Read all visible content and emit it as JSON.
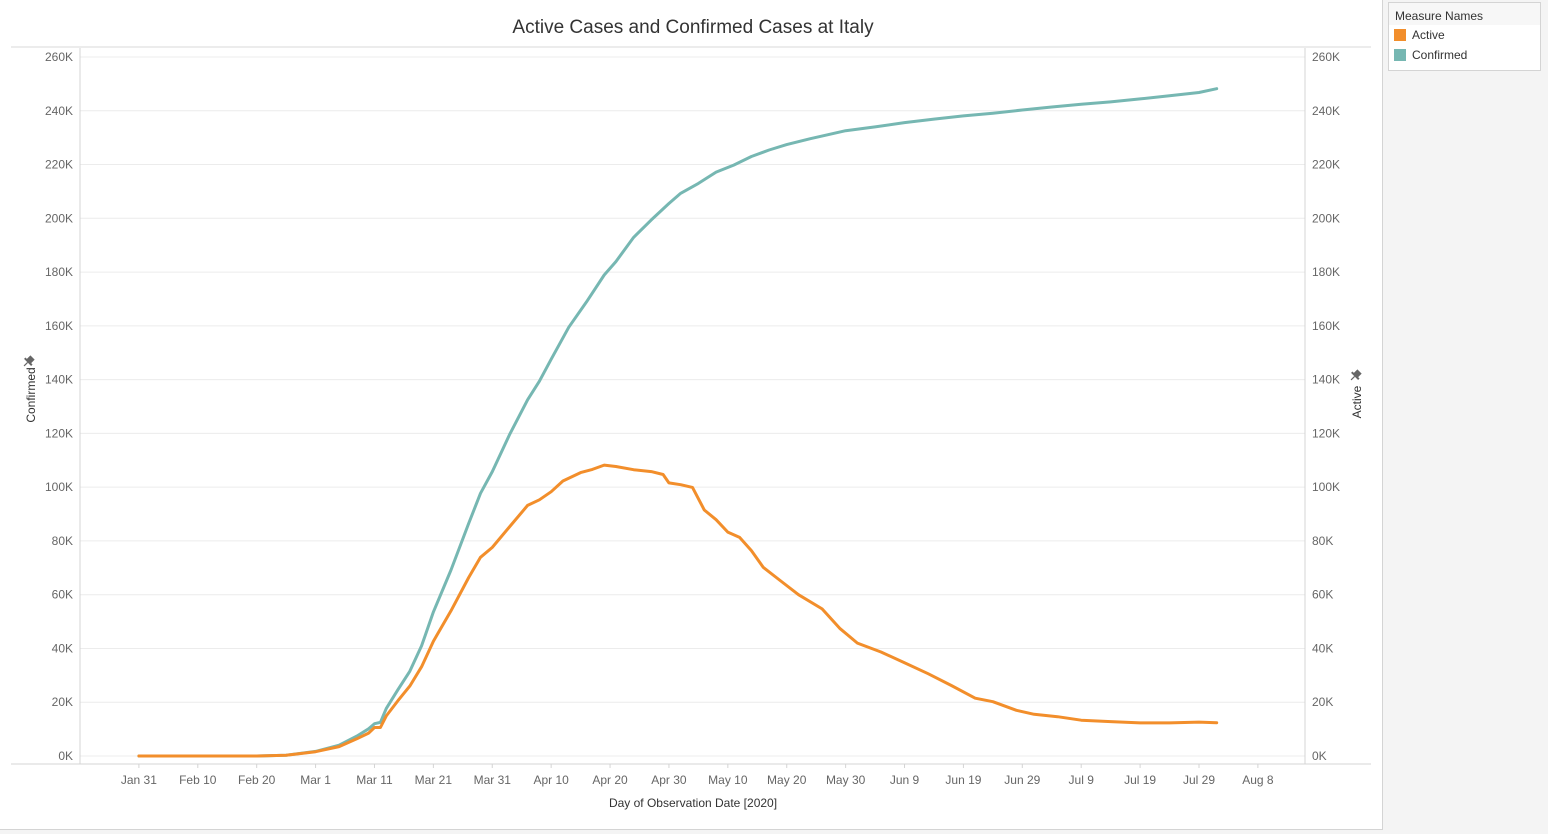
{
  "legend": {
    "title": "Measure Names",
    "items": [
      {
        "label": "Active",
        "color": "#f28e2b"
      },
      {
        "label": "Confirmed",
        "color": "#76b7b2"
      }
    ]
  },
  "chart_data": {
    "type": "line",
    "title": "Active Cases and Confirmed Cases at Italy",
    "xlabel": "Day of Observation Date [2020]",
    "ylabel_left": "Confirmed",
    "ylabel_right": "Active",
    "ylim": [
      0,
      260000
    ],
    "y_ticks": [
      0,
      20000,
      40000,
      60000,
      80000,
      100000,
      120000,
      140000,
      160000,
      180000,
      200000,
      220000,
      240000,
      260000
    ],
    "y_tick_labels": [
      "0K",
      "20K",
      "40K",
      "60K",
      "80K",
      "100K",
      "120K",
      "140K",
      "160K",
      "180K",
      "200K",
      "220K",
      "240K",
      "260K"
    ],
    "x_ticks": [
      "2020-01-31",
      "2020-02-10",
      "2020-02-20",
      "2020-03-01",
      "2020-03-11",
      "2020-03-21",
      "2020-03-31",
      "2020-04-10",
      "2020-04-20",
      "2020-04-30",
      "2020-05-10",
      "2020-05-20",
      "2020-05-30",
      "2020-06-09",
      "2020-06-19",
      "2020-06-29",
      "2020-07-09",
      "2020-07-19",
      "2020-07-29",
      "2020-08-08"
    ],
    "x_tick_labels": [
      "Jan 31",
      "Feb 10",
      "Feb 20",
      "Mar 1",
      "Mar 11",
      "Mar 21",
      "Mar 31",
      "Apr 10",
      "Apr 20",
      "Apr 30",
      "May 10",
      "May 20",
      "May 30",
      "Jun 9",
      "Jun 19",
      "Jun 29",
      "Jul 9",
      "Jul 19",
      "Jul 29",
      "Aug 8"
    ],
    "xlim": [
      "2020-01-21",
      "2020-08-16"
    ],
    "legend_position": "right",
    "grid": "horizontal",
    "series": [
      {
        "name": "Confirmed",
        "color": "#76b7b2",
        "axis": "left",
        "points": [
          [
            "2020-01-31",
            0
          ],
          [
            "2020-02-10",
            0
          ],
          [
            "2020-02-20",
            0
          ],
          [
            "2020-02-25",
            300
          ],
          [
            "2020-03-01",
            1700
          ],
          [
            "2020-03-05",
            4000
          ],
          [
            "2020-03-08",
            7400
          ],
          [
            "2020-03-10",
            10100
          ],
          [
            "2020-03-11",
            12000
          ],
          [
            "2020-03-12",
            12500
          ],
          [
            "2020-03-13",
            17700
          ],
          [
            "2020-03-15",
            24700
          ],
          [
            "2020-03-17",
            31500
          ],
          [
            "2020-03-19",
            41000
          ],
          [
            "2020-03-21",
            53600
          ],
          [
            "2020-03-24",
            69200
          ],
          [
            "2020-03-27",
            86500
          ],
          [
            "2020-03-29",
            97700
          ],
          [
            "2020-03-31",
            105800
          ],
          [
            "2020-04-03",
            119800
          ],
          [
            "2020-04-06",
            132500
          ],
          [
            "2020-04-08",
            139400
          ],
          [
            "2020-04-10",
            147600
          ],
          [
            "2020-04-13",
            159500
          ],
          [
            "2020-04-16",
            168900
          ],
          [
            "2020-04-19",
            178900
          ],
          [
            "2020-04-21",
            183900
          ],
          [
            "2020-04-24",
            192900
          ],
          [
            "2020-04-27",
            199400
          ],
          [
            "2020-04-30",
            205500
          ],
          [
            "2020-05-02",
            209300
          ],
          [
            "2020-05-05",
            213000
          ],
          [
            "2020-05-08",
            217200
          ],
          [
            "2020-05-11",
            219800
          ],
          [
            "2020-05-14",
            223000
          ],
          [
            "2020-05-17",
            225400
          ],
          [
            "2020-05-20",
            227400
          ],
          [
            "2020-05-24",
            229600
          ],
          [
            "2020-05-27",
            231100
          ],
          [
            "2020-05-30",
            232600
          ],
          [
            "2020-06-04",
            234000
          ],
          [
            "2020-06-09",
            235600
          ],
          [
            "2020-06-14",
            236900
          ],
          [
            "2020-06-19",
            238100
          ],
          [
            "2020-06-24",
            239100
          ],
          [
            "2020-06-29",
            240300
          ],
          [
            "2020-07-04",
            241400
          ],
          [
            "2020-07-09",
            242400
          ],
          [
            "2020-07-14",
            243300
          ],
          [
            "2020-07-19",
            244400
          ],
          [
            "2020-07-24",
            245600
          ],
          [
            "2020-07-29",
            246800
          ],
          [
            "2020-08-01",
            248200
          ]
        ]
      },
      {
        "name": "Active",
        "color": "#f28e2b",
        "axis": "right",
        "points": [
          [
            "2020-01-31",
            0
          ],
          [
            "2020-02-10",
            0
          ],
          [
            "2020-02-20",
            0
          ],
          [
            "2020-02-25",
            300
          ],
          [
            "2020-03-01",
            1600
          ],
          [
            "2020-03-05",
            3500
          ],
          [
            "2020-03-08",
            6400
          ],
          [
            "2020-03-10",
            8500
          ],
          [
            "2020-03-11",
            10600
          ],
          [
            "2020-03-12",
            10600
          ],
          [
            "2020-03-13",
            14900
          ],
          [
            "2020-03-15",
            20600
          ],
          [
            "2020-03-17",
            26000
          ],
          [
            "2020-03-19",
            33200
          ],
          [
            "2020-03-21",
            42700
          ],
          [
            "2020-03-24",
            54000
          ],
          [
            "2020-03-27",
            66400
          ],
          [
            "2020-03-29",
            73900
          ],
          [
            "2020-03-31",
            77600
          ],
          [
            "2020-04-03",
            85400
          ],
          [
            "2020-04-06",
            93200
          ],
          [
            "2020-04-08",
            95300
          ],
          [
            "2020-04-10",
            98300
          ],
          [
            "2020-04-12",
            102300
          ],
          [
            "2020-04-15",
            105400
          ],
          [
            "2020-04-17",
            106600
          ],
          [
            "2020-04-19",
            108200
          ],
          [
            "2020-04-21",
            107700
          ],
          [
            "2020-04-24",
            106500
          ],
          [
            "2020-04-27",
            105800
          ],
          [
            "2020-04-29",
            104700
          ],
          [
            "2020-04-30",
            101600
          ],
          [
            "2020-05-02",
            100900
          ],
          [
            "2020-05-04",
            99900
          ],
          [
            "2020-05-06",
            91500
          ],
          [
            "2020-05-08",
            87900
          ],
          [
            "2020-05-10",
            83300
          ],
          [
            "2020-05-12",
            81300
          ],
          [
            "2020-05-14",
            76400
          ],
          [
            "2020-05-16",
            70200
          ],
          [
            "2020-05-19",
            65100
          ],
          [
            "2020-05-22",
            60000
          ],
          [
            "2020-05-26",
            54700
          ],
          [
            "2020-05-29",
            47500
          ],
          [
            "2020-06-01",
            42000
          ],
          [
            "2020-06-05",
            38700
          ],
          [
            "2020-06-09",
            34700
          ],
          [
            "2020-06-13",
            30600
          ],
          [
            "2020-06-17",
            26200
          ],
          [
            "2020-06-21",
            21500
          ],
          [
            "2020-06-24",
            20200
          ],
          [
            "2020-06-28",
            17000
          ],
          [
            "2020-07-01",
            15500
          ],
          [
            "2020-07-05",
            14600
          ],
          [
            "2020-07-09",
            13300
          ],
          [
            "2020-07-14",
            12800
          ],
          [
            "2020-07-19",
            12300
          ],
          [
            "2020-07-24",
            12300
          ],
          [
            "2020-07-29",
            12600
          ],
          [
            "2020-08-01",
            12400
          ]
        ]
      }
    ]
  }
}
